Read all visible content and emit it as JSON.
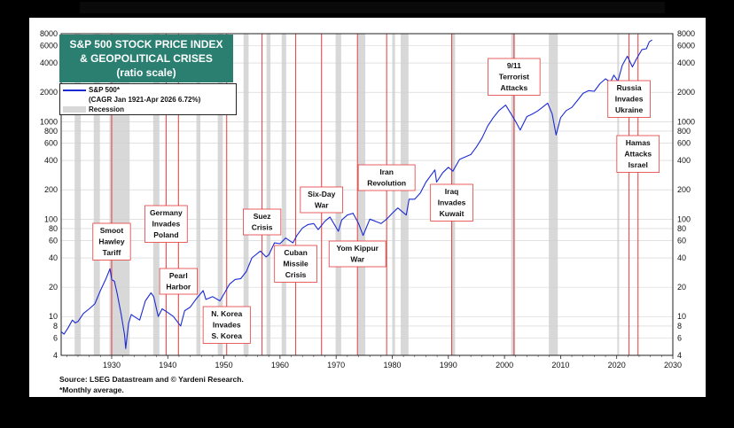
{
  "chart_data": {
    "type": "line",
    "title": [
      "S&P 500 STOCK PRICE INDEX",
      "& GEOPOLITICAL CRISES",
      "(ratio scale)"
    ],
    "scale": "log",
    "xlim": [
      1921,
      2030
    ],
    "ylim": [
      4,
      8000
    ],
    "x_ticks": [
      "1930",
      "1940",
      "1950",
      "1960",
      "1970",
      "1980",
      "1990",
      "2000",
      "2010",
      "2020",
      "2030"
    ],
    "y_ticks": [
      {
        "v": 8000,
        "label": "8000"
      },
      {
        "v": 6000,
        "label": "6000"
      },
      {
        "v": 4000,
        "label": "4000"
      },
      {
        "v": 2000,
        "label": "2000"
      },
      {
        "v": 1000,
        "label": "1000"
      },
      {
        "v": 800,
        "label": "800"
      },
      {
        "v": 600,
        "label": "600"
      },
      {
        "v": 400,
        "label": "400"
      },
      {
        "v": 200,
        "label": "200"
      },
      {
        "v": 100,
        "label": "100"
      },
      {
        "v": 80,
        "label": "80"
      },
      {
        "v": 60,
        "label": "60"
      },
      {
        "v": 40,
        "label": "40"
      },
      {
        "v": 20,
        "label": "20"
      },
      {
        "v": 10,
        "label": "10"
      },
      {
        "v": 8,
        "label": "8"
      },
      {
        "v": 6,
        "label": "6"
      },
      {
        "v": 4,
        "label": "4"
      }
    ],
    "grid": true,
    "legend": {
      "position": "top-left",
      "entries": [
        {
          "label": "S&P 500*",
          "kind": "line"
        },
        {
          "label": "(CAGR Jan 1921-Apr 2026 6.72%)",
          "kind": "none"
        },
        {
          "label": "Recession",
          "kind": "box"
        }
      ]
    },
    "series": [
      {
        "name": "S&P 500*",
        "color": "#1b2bd4",
        "points": [
          [
            1921.0,
            7.0
          ],
          [
            1921.5,
            6.6
          ],
          [
            1922.2,
            7.6
          ],
          [
            1923.0,
            9.2
          ],
          [
            1923.5,
            8.6
          ],
          [
            1924.0,
            8.9
          ],
          [
            1925.0,
            10.8
          ],
          [
            1926.0,
            12.0
          ],
          [
            1927.0,
            13.5
          ],
          [
            1928.0,
            18.5
          ],
          [
            1929.0,
            24.5
          ],
          [
            1929.7,
            31.0
          ],
          [
            1930.0,
            24.0
          ],
          [
            1930.5,
            23.0
          ],
          [
            1931.0,
            17.0
          ],
          [
            1931.7,
            10.5
          ],
          [
            1932.3,
            6.5
          ],
          [
            1932.5,
            4.7
          ],
          [
            1933.0,
            8.5
          ],
          [
            1933.5,
            10.5
          ],
          [
            1934.0,
            10.0
          ],
          [
            1935.0,
            9.2
          ],
          [
            1936.0,
            14.5
          ],
          [
            1937.0,
            17.5
          ],
          [
            1937.5,
            16.0
          ],
          [
            1938.3,
            10.0
          ],
          [
            1939.0,
            12.0
          ],
          [
            1940.0,
            11.0
          ],
          [
            1941.0,
            10.0
          ],
          [
            1942.3,
            8.0
          ],
          [
            1943.0,
            11.5
          ],
          [
            1944.0,
            12.5
          ],
          [
            1945.0,
            15.0
          ],
          [
            1946.3,
            18.5
          ],
          [
            1946.8,
            15.0
          ],
          [
            1948.0,
            16.0
          ],
          [
            1949.3,
            14.5
          ],
          [
            1950.0,
            17.0
          ],
          [
            1951.0,
            21.5
          ],
          [
            1952.0,
            24.0
          ],
          [
            1953.0,
            24.5
          ],
          [
            1954.0,
            29.0
          ],
          [
            1955.0,
            40.0
          ],
          [
            1956.5,
            47.0
          ],
          [
            1957.5,
            41.0
          ],
          [
            1958.0,
            43.0
          ],
          [
            1959.0,
            57.0
          ],
          [
            1960.0,
            56.0
          ],
          [
            1961.0,
            64.0
          ],
          [
            1962.3,
            57.0
          ],
          [
            1963.0,
            68.0
          ],
          [
            1964.0,
            81.0
          ],
          [
            1965.0,
            88.0
          ],
          [
            1966.0,
            90.0
          ],
          [
            1966.8,
            78.0
          ],
          [
            1968.0,
            95.0
          ],
          [
            1968.9,
            105.0
          ],
          [
            1970.4,
            75.0
          ],
          [
            1971.0,
            98.0
          ],
          [
            1972.0,
            110.0
          ],
          [
            1973.0,
            115.0
          ],
          [
            1974.0,
            90.0
          ],
          [
            1974.8,
            68.0
          ],
          [
            1976.0,
            100.0
          ],
          [
            1977.0,
            95.0
          ],
          [
            1978.0,
            90.0
          ],
          [
            1979.0,
            100.0
          ],
          [
            1980.0,
            115.0
          ],
          [
            1981.0,
            130.0
          ],
          [
            1982.5,
            110.0
          ],
          [
            1983.0,
            160.0
          ],
          [
            1984.0,
            160.0
          ],
          [
            1985.0,
            185.0
          ],
          [
            1986.0,
            240.0
          ],
          [
            1987.6,
            320.0
          ],
          [
            1987.9,
            240.0
          ],
          [
            1989.0,
            300.0
          ],
          [
            1990.0,
            340.0
          ],
          [
            1990.8,
            310.0
          ],
          [
            1992.0,
            410.0
          ],
          [
            1994.0,
            460.0
          ],
          [
            1995.0,
            550.0
          ],
          [
            1996.0,
            680.0
          ],
          [
            1997.0,
            900.0
          ],
          [
            1998.0,
            1100.0
          ],
          [
            1999.0,
            1300.0
          ],
          [
            2000.2,
            1480.0
          ],
          [
            2001.0,
            1250.0
          ],
          [
            2002.0,
            1000.0
          ],
          [
            2002.8,
            820.0
          ],
          [
            2004.0,
            1130.0
          ],
          [
            2005.0,
            1200.0
          ],
          [
            2006.0,
            1300.0
          ],
          [
            2007.7,
            1550.0
          ],
          [
            2008.5,
            1200.0
          ],
          [
            2009.2,
            730.0
          ],
          [
            2010.0,
            1100.0
          ],
          [
            2011.0,
            1300.0
          ],
          [
            2012.0,
            1400.0
          ],
          [
            2013.0,
            1650.0
          ],
          [
            2014.0,
            1950.0
          ],
          [
            2015.0,
            2080.0
          ],
          [
            2016.0,
            2050.0
          ],
          [
            2017.0,
            2450.0
          ],
          [
            2018.0,
            2750.0
          ],
          [
            2018.9,
            2550.0
          ],
          [
            2019.5,
            3000.0
          ],
          [
            2020.2,
            2600.0
          ],
          [
            2021.0,
            3800.0
          ],
          [
            2021.9,
            4700.0
          ],
          [
            2022.8,
            3650.0
          ],
          [
            2023.5,
            4400.0
          ],
          [
            2024.5,
            5500.0
          ],
          [
            2025.3,
            5600.0
          ],
          [
            2025.8,
            6600.0
          ],
          [
            2026.3,
            6900.0
          ]
        ]
      }
    ],
    "recessions": [
      [
        1923.4,
        1924.5
      ],
      [
        1926.8,
        1927.9
      ],
      [
        1929.6,
        1933.2
      ],
      [
        1937.4,
        1938.5
      ],
      [
        1945.1,
        1945.8
      ],
      [
        1948.9,
        1949.8
      ],
      [
        1953.5,
        1954.4
      ],
      [
        1957.6,
        1958.3
      ],
      [
        1960.3,
        1961.1
      ],
      [
        1969.9,
        1970.9
      ],
      [
        1973.9,
        1975.2
      ],
      [
        1980.0,
        1980.5
      ],
      [
        1981.5,
        1982.9
      ],
      [
        1990.5,
        1991.2
      ],
      [
        2001.2,
        2001.9
      ],
      [
        2007.9,
        2009.5
      ],
      [
        2020.1,
        2020.4
      ]
    ],
    "events": [
      {
        "x": 1930.0,
        "lines": [
          "Smoot",
          "Hawley",
          "Tariff"
        ]
      },
      {
        "x": 1939.7,
        "lines": [
          "Germany",
          "Invades",
          "Poland"
        ]
      },
      {
        "x": 1941.9,
        "lines": [
          "Pearl",
          "Harbor"
        ]
      },
      {
        "x": 1950.5,
        "lines": [
          "N. Korea",
          "Invades",
          "S. Korea"
        ]
      },
      {
        "x": 1956.8,
        "lines": [
          "Suez",
          "Crisis"
        ]
      },
      {
        "x": 1962.8,
        "lines": [
          "Cuban",
          "Missile",
          "Crisis"
        ]
      },
      {
        "x": 1967.4,
        "lines": [
          "Six-Day",
          "War"
        ]
      },
      {
        "x": 1973.8,
        "lines": [
          "Yom Kippur",
          "War"
        ]
      },
      {
        "x": 1979.0,
        "lines": [
          "Iran",
          "Revolution"
        ]
      },
      {
        "x": 1990.6,
        "lines": [
          "Iraq",
          "Invades",
          "Kuwait"
        ]
      },
      {
        "x": 2001.7,
        "lines": [
          "9/11",
          "Terrorist",
          "Attacks"
        ]
      },
      {
        "x": 2022.2,
        "lines": [
          "Russia",
          "Invades",
          "Ukraine"
        ]
      },
      {
        "x": 2023.8,
        "lines": [
          "Hamas",
          "Attacks",
          "Israel"
        ]
      }
    ]
  },
  "footer": {
    "source": "Source: LSEG Datastream and © Yardeni Research.",
    "note": "*Monthly average."
  }
}
